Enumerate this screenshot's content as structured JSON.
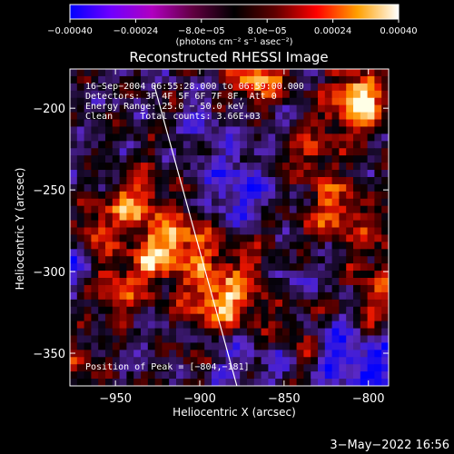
{
  "chart_data": {
    "type": "heatmap",
    "title": "Reconstructed RHESSI Image",
    "xlabel": "Heliocentric X (arcsec)",
    "ylabel": "Heliocentric Y (arcsec)",
    "xlim": [
      -977,
      -788
    ],
    "ylim": [
      -370,
      -176
    ],
    "x_ticks": [
      -950,
      -900,
      -850,
      -800
    ],
    "x_tick_labels": [
      "−950",
      "−900",
      "−850",
      "−800"
    ],
    "y_ticks": [
      -200,
      -250,
      -300,
      -350
    ],
    "y_tick_labels": [
      "−200",
      "−250",
      "−300",
      "−350"
    ],
    "colorbar": {
      "range": [
        -0.0004,
        0.0004
      ],
      "ticks": [
        -0.0004,
        -0.00024,
        -8e-05,
        8e-05,
        0.00024,
        0.0004
      ],
      "tick_labels": [
        "−0.00040",
        "−0.00024",
        "−8.0e−05",
        "8.0e−05",
        "0.00024",
        "0.00040"
      ],
      "unit_label": "(photons cm⁻² s⁻¹ asec⁻²)",
      "colors": [
        "#0000ff",
        "#7000ff",
        "#b000c0",
        "#600040",
        "#000000",
        "#600000",
        "#ff0000",
        "#ffa000",
        "#ffffff"
      ]
    },
    "annotations": [
      "16−Sep−2004 06:55:28.000 to 06:59:00.000",
      "Detectors: 3F 4F 5F 6F 7F 8F, Att 0",
      "Energy Range: 25.0 − 50.0 keV",
      "Clean     Total counts: 3.66E+03"
    ],
    "peak_label": "Position of Peak = [−804,−181]",
    "peak_position": [
      -804,
      -181
    ],
    "limb_line": {
      "x": [
        -927,
        -878
      ],
      "y": [
        -186,
        -370
      ]
    },
    "grid": false
  },
  "footer": {
    "timestamp": "3−May−2022 16:56"
  }
}
